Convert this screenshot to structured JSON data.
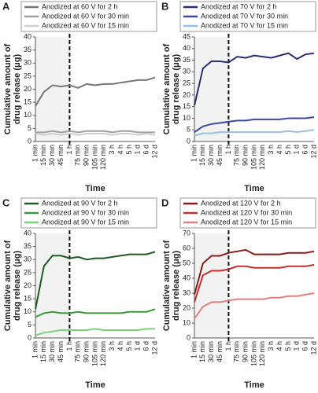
{
  "chart_data": [
    {
      "type": "line",
      "label": "A",
      "ylabel": [
        "Cumulative amount of",
        "drug release (μg)"
      ],
      "xlabel": "Time",
      "categories": [
        "1 min",
        "15 min",
        "30 min",
        "45 min",
        "1 h",
        "75 min",
        "90 min",
        "105 min",
        "120 min",
        "3 h",
        "4 h",
        "5 h",
        "1 d",
        "6 d",
        "12 d"
      ],
      "vline": "1 h",
      "ylim": [
        0,
        40
      ],
      "yticks": [
        0,
        5,
        10,
        15,
        20,
        25,
        30,
        35,
        40
      ],
      "series": [
        {
          "name": "Anodized at 60 V for 2 h",
          "color": "#777777",
          "values": [
            13.5,
            19,
            21.5,
            21,
            21.5,
            20.5,
            22,
            21.5,
            22,
            22,
            22.5,
            23,
            23.5,
            23.5,
            24.5
          ]
        },
        {
          "name": "Anodized at 60 V for 30 min",
          "color": "#a0a0a0",
          "values": [
            3.5,
            3.5,
            4,
            3.5,
            4,
            3.5,
            4,
            4,
            4,
            3.5,
            4,
            4,
            3.5,
            3.5,
            3.5
          ]
        },
        {
          "name": "Anodized at 60 V for 15 min",
          "color": "#cfcfcf",
          "values": [
            3,
            2.5,
            3,
            2.5,
            3,
            2.5,
            3,
            3,
            3,
            2.5,
            3,
            3,
            2.5,
            3,
            2.5
          ]
        }
      ]
    },
    {
      "type": "line",
      "label": "B",
      "ylabel": [
        "Cumulative amount of",
        "drug release (μg)"
      ],
      "xlabel": "Time",
      "categories": [
        "1 min",
        "15 min",
        "30 min",
        "45 min",
        "1 h",
        "75 min",
        "90 min",
        "105 min",
        "120 min",
        "3 h",
        "4 h",
        "5 h",
        "1 d",
        "6 d",
        "12 d"
      ],
      "vline": "1 h",
      "ylim": [
        0,
        45
      ],
      "yticks": [
        0,
        5,
        10,
        15,
        20,
        25,
        30,
        35,
        40,
        45
      ],
      "series": [
        {
          "name": "Anodized at 70 V for 2 h",
          "color": "#2b2d6e",
          "values": [
            15.5,
            31.5,
            34.5,
            34.5,
            34,
            36.5,
            36,
            37,
            36.5,
            36,
            37,
            38,
            35.5,
            37.5,
            38
          ]
        },
        {
          "name": "Anodized at 70 V for 30 min",
          "color": "#3a4aa0",
          "values": [
            4,
            6.5,
            7.5,
            8,
            8.5,
            9,
            9,
            9.5,
            9.5,
            9.5,
            9.5,
            10,
            10,
            10,
            10.5
          ]
        },
        {
          "name": "Anodized at 70 V for 15 min",
          "color": "#9bbfe0",
          "values": [
            2.5,
            3.5,
            3.5,
            4,
            4,
            4,
            4,
            4,
            4,
            4,
            4,
            4.5,
            4,
            4.5,
            5
          ]
        }
      ]
    },
    {
      "type": "line",
      "label": "C",
      "ylabel": [
        "Cumulative amount of",
        "drug release (μg)"
      ],
      "xlabel": "Time",
      "categories": [
        "1 min",
        "15 min",
        "30 min",
        "45 min",
        "1 h",
        "75 min",
        "90 min",
        "105 min",
        "120 min",
        "3 h",
        "4 h",
        "5 h",
        "1 d",
        "6 d",
        "12 d"
      ],
      "vline": "1 h",
      "ylim": [
        0,
        40
      ],
      "yticks": [
        0,
        5,
        10,
        15,
        20,
        25,
        30,
        35,
        40
      ],
      "series": [
        {
          "name": "Anodized at 90 V for 2 h",
          "color": "#1f5a20",
          "values": [
            11,
            27.5,
            31.5,
            31.5,
            30.5,
            31,
            30,
            30.5,
            30.5,
            31,
            31.5,
            32,
            32,
            32,
            33
          ]
        },
        {
          "name": "Anodized at 90 V for 30 min",
          "color": "#3a9a3a",
          "values": [
            8,
            9.5,
            10,
            9.5,
            9.5,
            10,
            9.5,
            9.5,
            9.5,
            9.5,
            9.5,
            10,
            10,
            10,
            11
          ]
        },
        {
          "name": "Anodized at 90 V for 15 min",
          "color": "#7dd07d",
          "values": [
            1,
            2,
            2.5,
            3,
            3,
            3,
            3,
            3.5,
            3,
            3,
            3,
            3,
            3,
            3.5,
            3.5
          ]
        }
      ]
    },
    {
      "type": "line",
      "label": "D",
      "ylabel": [
        "Cumulative amount of",
        "drug release (μg)"
      ],
      "xlabel": "Time",
      "categories": [
        "1 min",
        "15 min",
        "30 min",
        "45 min",
        "1 h",
        "75 min",
        "90 min",
        "105 min",
        "120 min",
        "3 h",
        "4 h",
        "5 h",
        "1 d",
        "6 d",
        "12 d"
      ],
      "vline": "1 h",
      "ylim": [
        0,
        70
      ],
      "yticks": [
        0,
        10,
        20,
        30,
        40,
        50,
        60,
        70
      ],
      "series": [
        {
          "name": "Anodized at 120 V for 2 h",
          "color": "#8b1a1a",
          "values": [
            29,
            50,
            55,
            55,
            57,
            58,
            59,
            56,
            56,
            56,
            56,
            57,
            57,
            57,
            58
          ]
        },
        {
          "name": "Anodized at 120 V for 30 min",
          "color": "#c03030",
          "values": [
            24,
            42,
            45,
            45,
            46,
            48,
            48,
            47,
            47,
            47,
            47,
            48,
            48,
            48,
            49
          ]
        },
        {
          "name": "Anodized at 120 V for 15 min",
          "color": "#e08080",
          "values": [
            13,
            21,
            24,
            24,
            25,
            26,
            26,
            26,
            26,
            27,
            27,
            28,
            28,
            29,
            30
          ]
        }
      ]
    }
  ]
}
